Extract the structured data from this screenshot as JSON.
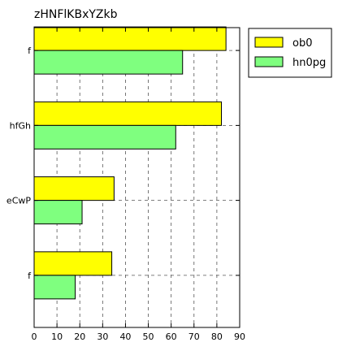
{
  "chart_data": {
    "type": "bar",
    "orientation": "horizontal",
    "title": "zHNFlKBxYZkb",
    "categories": [
      "f",
      "hfGh",
      "eCwP",
      "f"
    ],
    "series": [
      {
        "name": "ob0",
        "color": "#ffff00",
        "values": [
          84,
          82,
          35,
          34
        ]
      },
      {
        "name": "hn0pg",
        "color": "#7fff7f",
        "values": [
          65,
          62,
          21,
          18
        ]
      }
    ],
    "xlim": [
      0,
      90
    ],
    "xticks": [
      0,
      10,
      20,
      30,
      40,
      50,
      60,
      70,
      80,
      90
    ],
    "grid": true,
    "legend": "top-right"
  }
}
